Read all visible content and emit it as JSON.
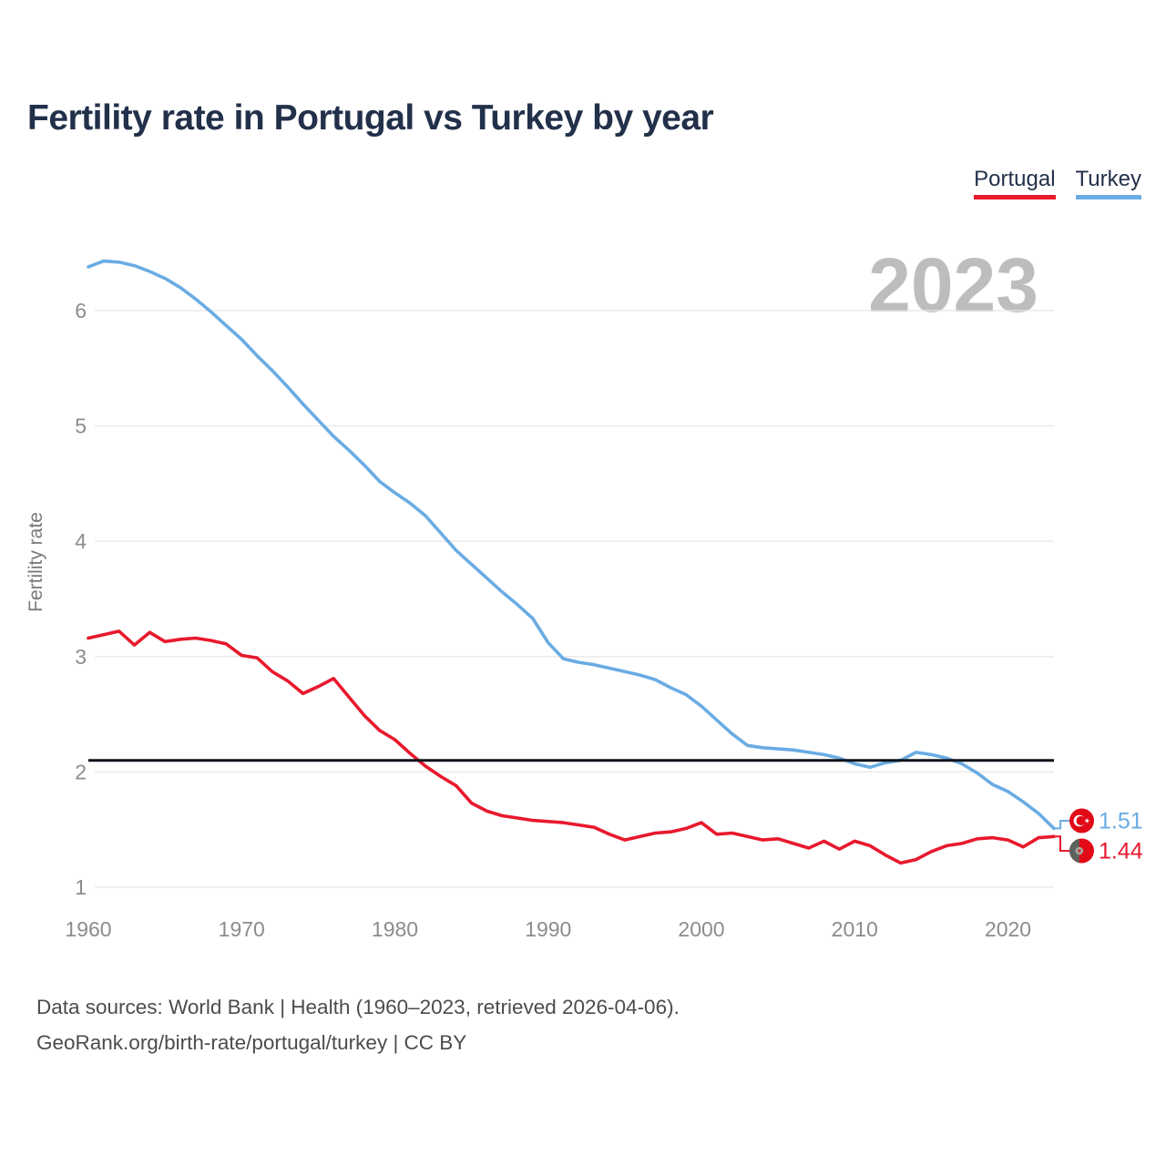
{
  "title": "Fertility rate in Portugal vs Turkey by year",
  "watermark": "2023",
  "legend": [
    {
      "label": "Portugal",
      "color": "#e8192d"
    },
    {
      "label": "Turkey",
      "color": "#6aace3"
    }
  ],
  "footer": {
    "line1": "Data sources: World Bank | Health (1960–2023, retrieved 2026-04-06).",
    "line2": "GeoRank.org/birth-rate/portugal/turkey | CC BY"
  },
  "chart_data": {
    "type": "line",
    "title": "Fertility rate in Portugal vs Turkey by year",
    "xlabel": "",
    "ylabel": "Fertility rate",
    "grid": "horizontal",
    "legend_position": "top-right",
    "xlim": [
      1960,
      2023
    ],
    "ylim": [
      0.85,
      6.6
    ],
    "xticks": [
      1960,
      1970,
      1980,
      1990,
      2000,
      2010,
      2020
    ],
    "yticks": [
      1,
      2,
      3,
      4,
      5,
      6
    ],
    "reference_line": 2.1,
    "years": [
      1960,
      1961,
      1962,
      1963,
      1964,
      1965,
      1966,
      1967,
      1968,
      1969,
      1970,
      1971,
      1972,
      1973,
      1974,
      1975,
      1976,
      1977,
      1978,
      1979,
      1980,
      1981,
      1982,
      1983,
      1984,
      1985,
      1986,
      1987,
      1988,
      1989,
      1990,
      1991,
      1992,
      1993,
      1994,
      1995,
      1996,
      1997,
      1998,
      1999,
      2000,
      2001,
      2002,
      2003,
      2004,
      2005,
      2006,
      2007,
      2008,
      2009,
      2010,
      2011,
      2012,
      2013,
      2014,
      2015,
      2016,
      2017,
      2018,
      2019,
      2020,
      2021,
      2022,
      2023
    ],
    "series": [
      {
        "name": "Turkey",
        "color": "#6aace3",
        "values": [
          6.38,
          6.43,
          6.42,
          6.39,
          6.34,
          6.28,
          6.2,
          6.1,
          5.99,
          5.87,
          5.75,
          5.61,
          5.48,
          5.34,
          5.19,
          5.05,
          4.91,
          4.79,
          4.66,
          4.52,
          4.42,
          4.33,
          4.22,
          4.07,
          3.92,
          3.8,
          3.68,
          3.56,
          3.45,
          3.33,
          3.12,
          2.98,
          2.95,
          2.93,
          2.9,
          2.87,
          2.84,
          2.8,
          2.73,
          2.67,
          2.57,
          2.45,
          2.33,
          2.23,
          2.21,
          2.2,
          2.19,
          2.17,
          2.15,
          2.12,
          2.07,
          2.04,
          2.08,
          2.1,
          2.17,
          2.15,
          2.12,
          2.07,
          1.99,
          1.89,
          1.83,
          1.74,
          1.64,
          1.51
        ]
      },
      {
        "name": "Portugal",
        "color": "#e8192d",
        "values": [
          3.16,
          3.19,
          3.22,
          3.1,
          3.21,
          3.13,
          3.15,
          3.16,
          3.14,
          3.11,
          3.01,
          2.99,
          2.87,
          2.79,
          2.68,
          2.74,
          2.81,
          2.65,
          2.49,
          2.36,
          2.28,
          2.16,
          2.05,
          1.96,
          1.88,
          1.73,
          1.66,
          1.62,
          1.6,
          1.58,
          1.57,
          1.56,
          1.54,
          1.52,
          1.46,
          1.41,
          1.44,
          1.47,
          1.48,
          1.51,
          1.56,
          1.46,
          1.47,
          1.44,
          1.41,
          1.42,
          1.38,
          1.34,
          1.4,
          1.33,
          1.4,
          1.36,
          1.28,
          1.21,
          1.24,
          1.31,
          1.36,
          1.38,
          1.42,
          1.43,
          1.41,
          1.35,
          1.43,
          1.44
        ]
      }
    ],
    "end_labels": [
      {
        "series": "Turkey",
        "text": "1.51",
        "color": "#6aace3",
        "flag": "turkey-flag"
      },
      {
        "series": "Portugal",
        "text": "1.44",
        "color": "#e8192d",
        "flag": "portugal-flag"
      }
    ]
  }
}
